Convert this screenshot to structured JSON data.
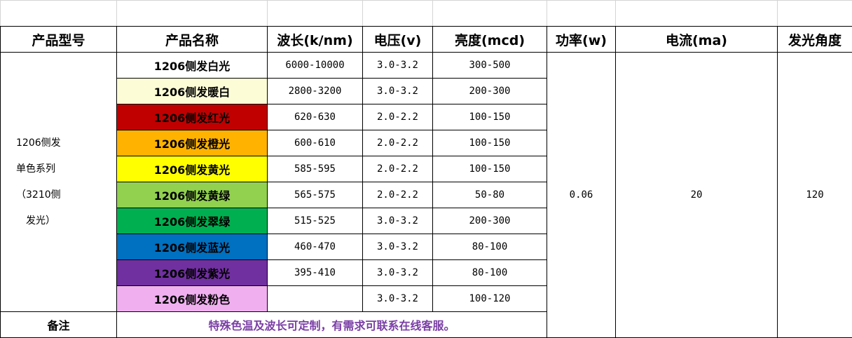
{
  "headers": {
    "model": "产品型号",
    "name": "产品名称",
    "wavelength": "波长(k/nm)",
    "voltage": "电压(v)",
    "brightness": "亮度(mcd)",
    "power": "功率(w)",
    "current": "电流(ma)",
    "angle": "发光角度"
  },
  "series": {
    "line1": "1206侧发",
    "line2": "单色系列",
    "line3": "（3210侧",
    "line4": "发光）"
  },
  "products": [
    {
      "name": "1206侧发白光",
      "wavelength": "6000-10000",
      "voltage": "3.0-3.2",
      "brightness": "300-500",
      "color": "#ffffff"
    },
    {
      "name": "1206侧发暖白",
      "wavelength": "2800-3200",
      "voltage": "3.0-3.2",
      "brightness": "200-300",
      "color": "#fcfcd6"
    },
    {
      "name": "1206侧发红光",
      "wavelength": "620-630",
      "voltage": "2.0-2.2",
      "brightness": "100-150",
      "color": "#c00000"
    },
    {
      "name": "1206侧发橙光",
      "wavelength": "600-610",
      "voltage": "2.0-2.2",
      "brightness": "100-150",
      "color": "#ffb300"
    },
    {
      "name": "1206侧发黄光",
      "wavelength": "585-595",
      "voltage": "2.0-2.2",
      "brightness": "100-150",
      "color": "#ffff00"
    },
    {
      "name": "1206侧发黄绿",
      "wavelength": "565-575",
      "voltage": "2.0-2.2",
      "brightness": "50-80",
      "color": "#92d050"
    },
    {
      "name": "1206侧发翠绿",
      "wavelength": "515-525",
      "voltage": "3.0-3.2",
      "brightness": "200-300",
      "color": "#00b050"
    },
    {
      "name": "1206侧发蓝光",
      "wavelength": "460-470",
      "voltage": "3.0-3.2",
      "brightness": "80-100",
      "color": "#0070c0"
    },
    {
      "name": "1206侧发紫光",
      "wavelength": "395-410",
      "voltage": "3.0-3.2",
      "brightness": "80-100",
      "color": "#7030a0"
    },
    {
      "name": "1206侧发粉色",
      "wavelength": "",
      "voltage": "3.0-3.2",
      "brightness": "100-120",
      "color": "#f0b0f0"
    }
  ],
  "shared": {
    "power": "0.06",
    "current": "20",
    "angle": "120"
  },
  "note": {
    "label": "备注",
    "text": "特殊色温及波长可定制，有需求可联系在线客服。"
  }
}
